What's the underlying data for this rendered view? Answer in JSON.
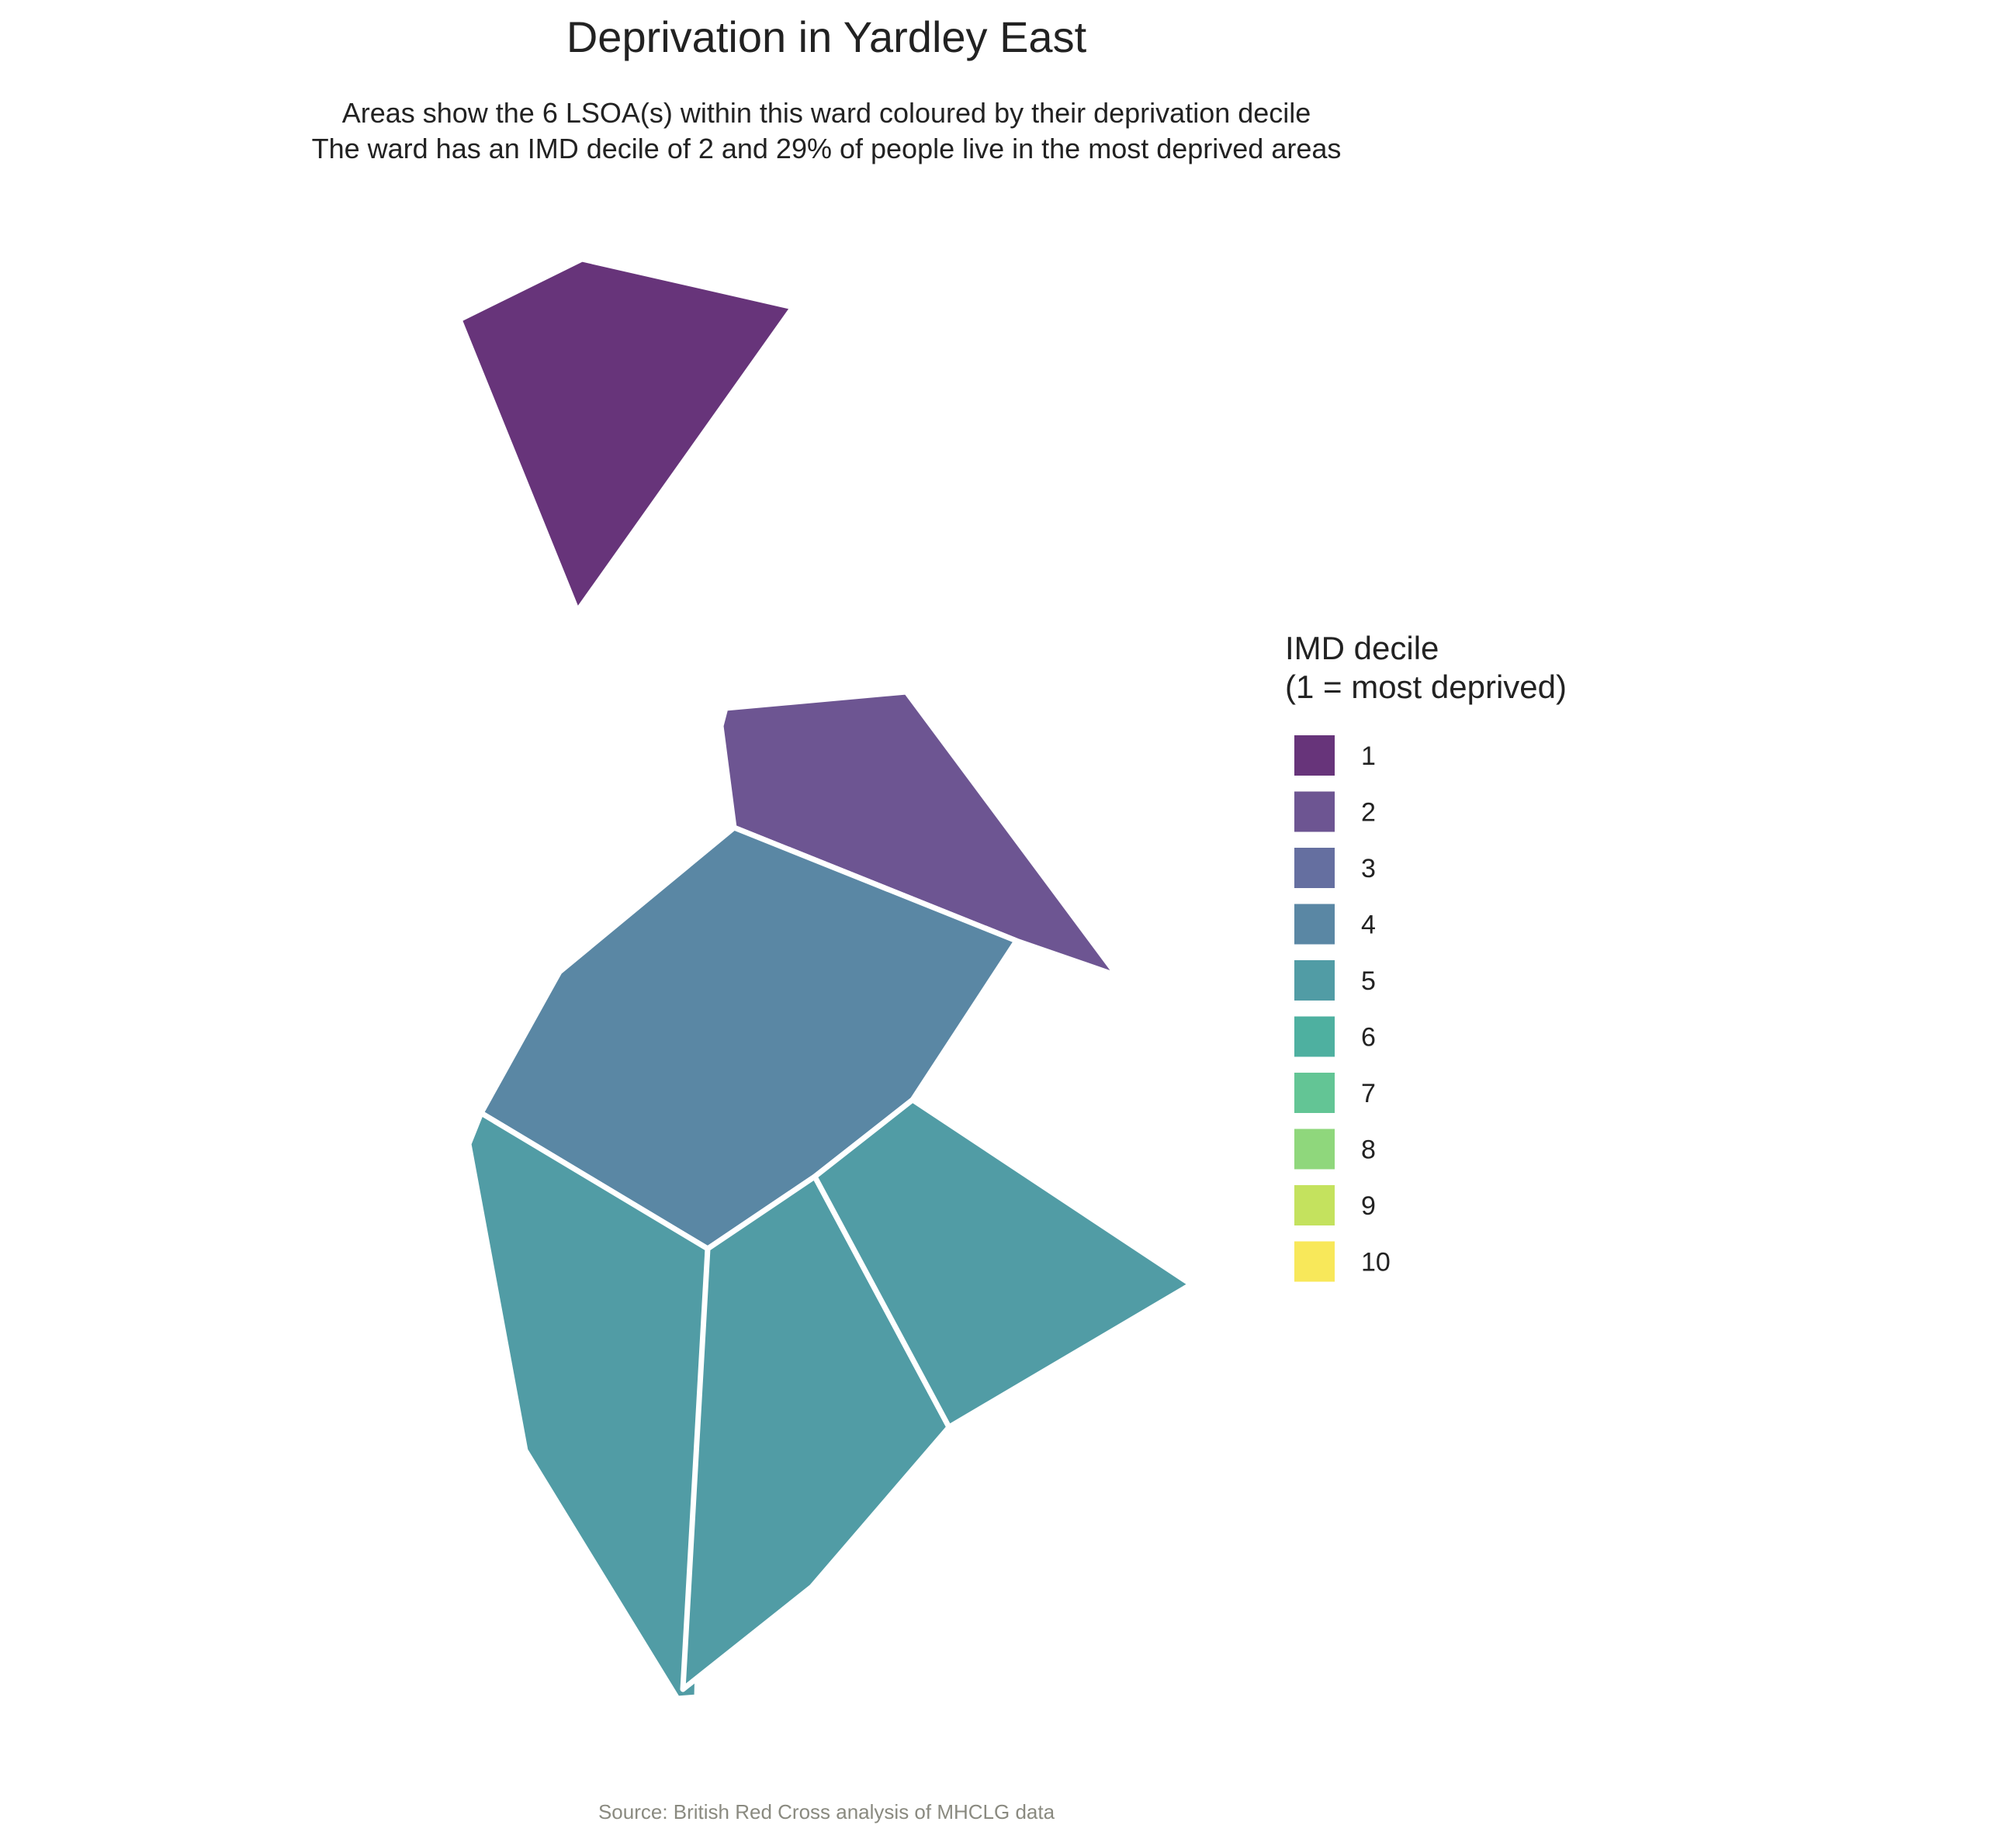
{
  "title": "Deprivation in Yardley East",
  "subtitle_lines": [
    "Areas show the 6 LSOA(s) within this ward coloured by their deprivation decile",
    "The ward has an IMD decile of 2 and 29% of people live in the most deprived areas"
  ],
  "caption": "Source: British Red Cross analysis of MHCLG data",
  "legend": {
    "title_lines": [
      "IMD decile",
      "(1 = most deprived)"
    ],
    "items": [
      {
        "label": "1",
        "color": "#67347a"
      },
      {
        "label": "2",
        "color": "#6d5592"
      },
      {
        "label": "3",
        "color": "#656fa0"
      },
      {
        "label": "4",
        "color": "#5a87a4"
      },
      {
        "label": "5",
        "color": "#519ca5"
      },
      {
        "label": "6",
        "color": "#4eb0a0"
      },
      {
        "label": "7",
        "color": "#63c595"
      },
      {
        "label": "8",
        "color": "#8fd77c"
      },
      {
        "label": "9",
        "color": "#c4e25e"
      },
      {
        "label": "10",
        "color": "#f8e85a"
      }
    ]
  },
  "areas": [
    {
      "id": "lsoa-1",
      "decile": 1
    },
    {
      "id": "lsoa-2",
      "decile": 2
    },
    {
      "id": "lsoa-3",
      "decile": 4
    },
    {
      "id": "lsoa-4",
      "decile": 5
    },
    {
      "id": "lsoa-5",
      "decile": 5
    },
    {
      "id": "lsoa-6",
      "decile": 5
    }
  ]
}
